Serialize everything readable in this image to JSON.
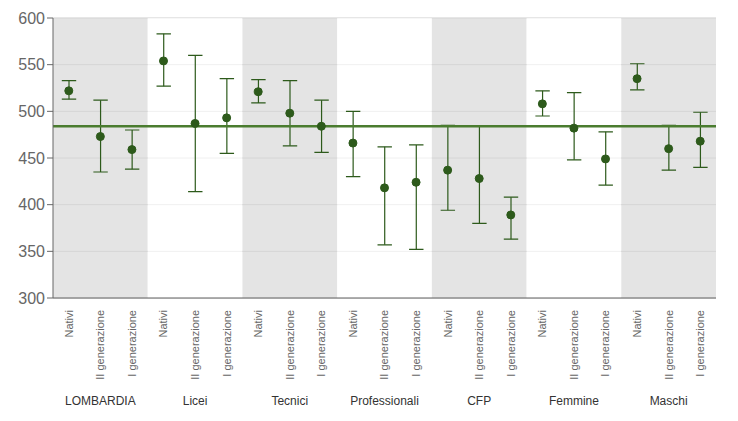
{
  "chart_data": {
    "type": "dot",
    "categories": [
      "Nativi",
      "II generazione",
      "I generazione"
    ],
    "groups": [
      {
        "label": "LOMBARDIA",
        "color": "#d9d9d9",
        "values": [
          522,
          473,
          459
        ],
        "ci_low": [
          513,
          435,
          438
        ],
        "ci_high": [
          533,
          512,
          480
        ]
      },
      {
        "label": "Licei",
        "color": "#ffffff",
        "values": [
          554,
          487,
          493
        ],
        "ci_low": [
          527,
          414,
          455
        ],
        "ci_high": [
          583,
          560,
          535
        ]
      },
      {
        "label": "Tecnici",
        "color": "#d9d9d9",
        "values": [
          521,
          498,
          484
        ],
        "ci_low": [
          509,
          463,
          456
        ],
        "ci_high": [
          534,
          533,
          512
        ]
      },
      {
        "label": "Professionali",
        "color": "#ffffff",
        "values": [
          466,
          418,
          424
        ],
        "ci_low": [
          430,
          357,
          352
        ],
        "ci_high": [
          500,
          462,
          464
        ]
      },
      {
        "label": "CFP",
        "color": "#d9d9d9",
        "values": [
          437,
          428,
          389
        ],
        "ci_low": [
          394,
          380,
          363
        ],
        "ci_high": [
          485,
          484,
          408
        ]
      },
      {
        "label": "Femmine",
        "color": "#ffffff",
        "values": [
          508,
          482,
          449
        ],
        "ci_low": [
          495,
          448,
          421
        ],
        "ci_high": [
          522,
          520,
          478
        ]
      },
      {
        "label": "Maschi",
        "color": "#d9d9d9",
        "values": [
          535,
          460,
          468
        ],
        "ci_low": [
          523,
          437,
          440
        ],
        "ci_high": [
          551,
          485,
          499
        ]
      }
    ],
    "color": "#2d5a1b",
    "reference_line": {
      "value": 484,
      "color": "#4a7c2f"
    },
    "ylim": [
      300,
      600
    ],
    "yticks": [
      300,
      350,
      400,
      450,
      500,
      550,
      600
    ],
    "grid": true
  }
}
